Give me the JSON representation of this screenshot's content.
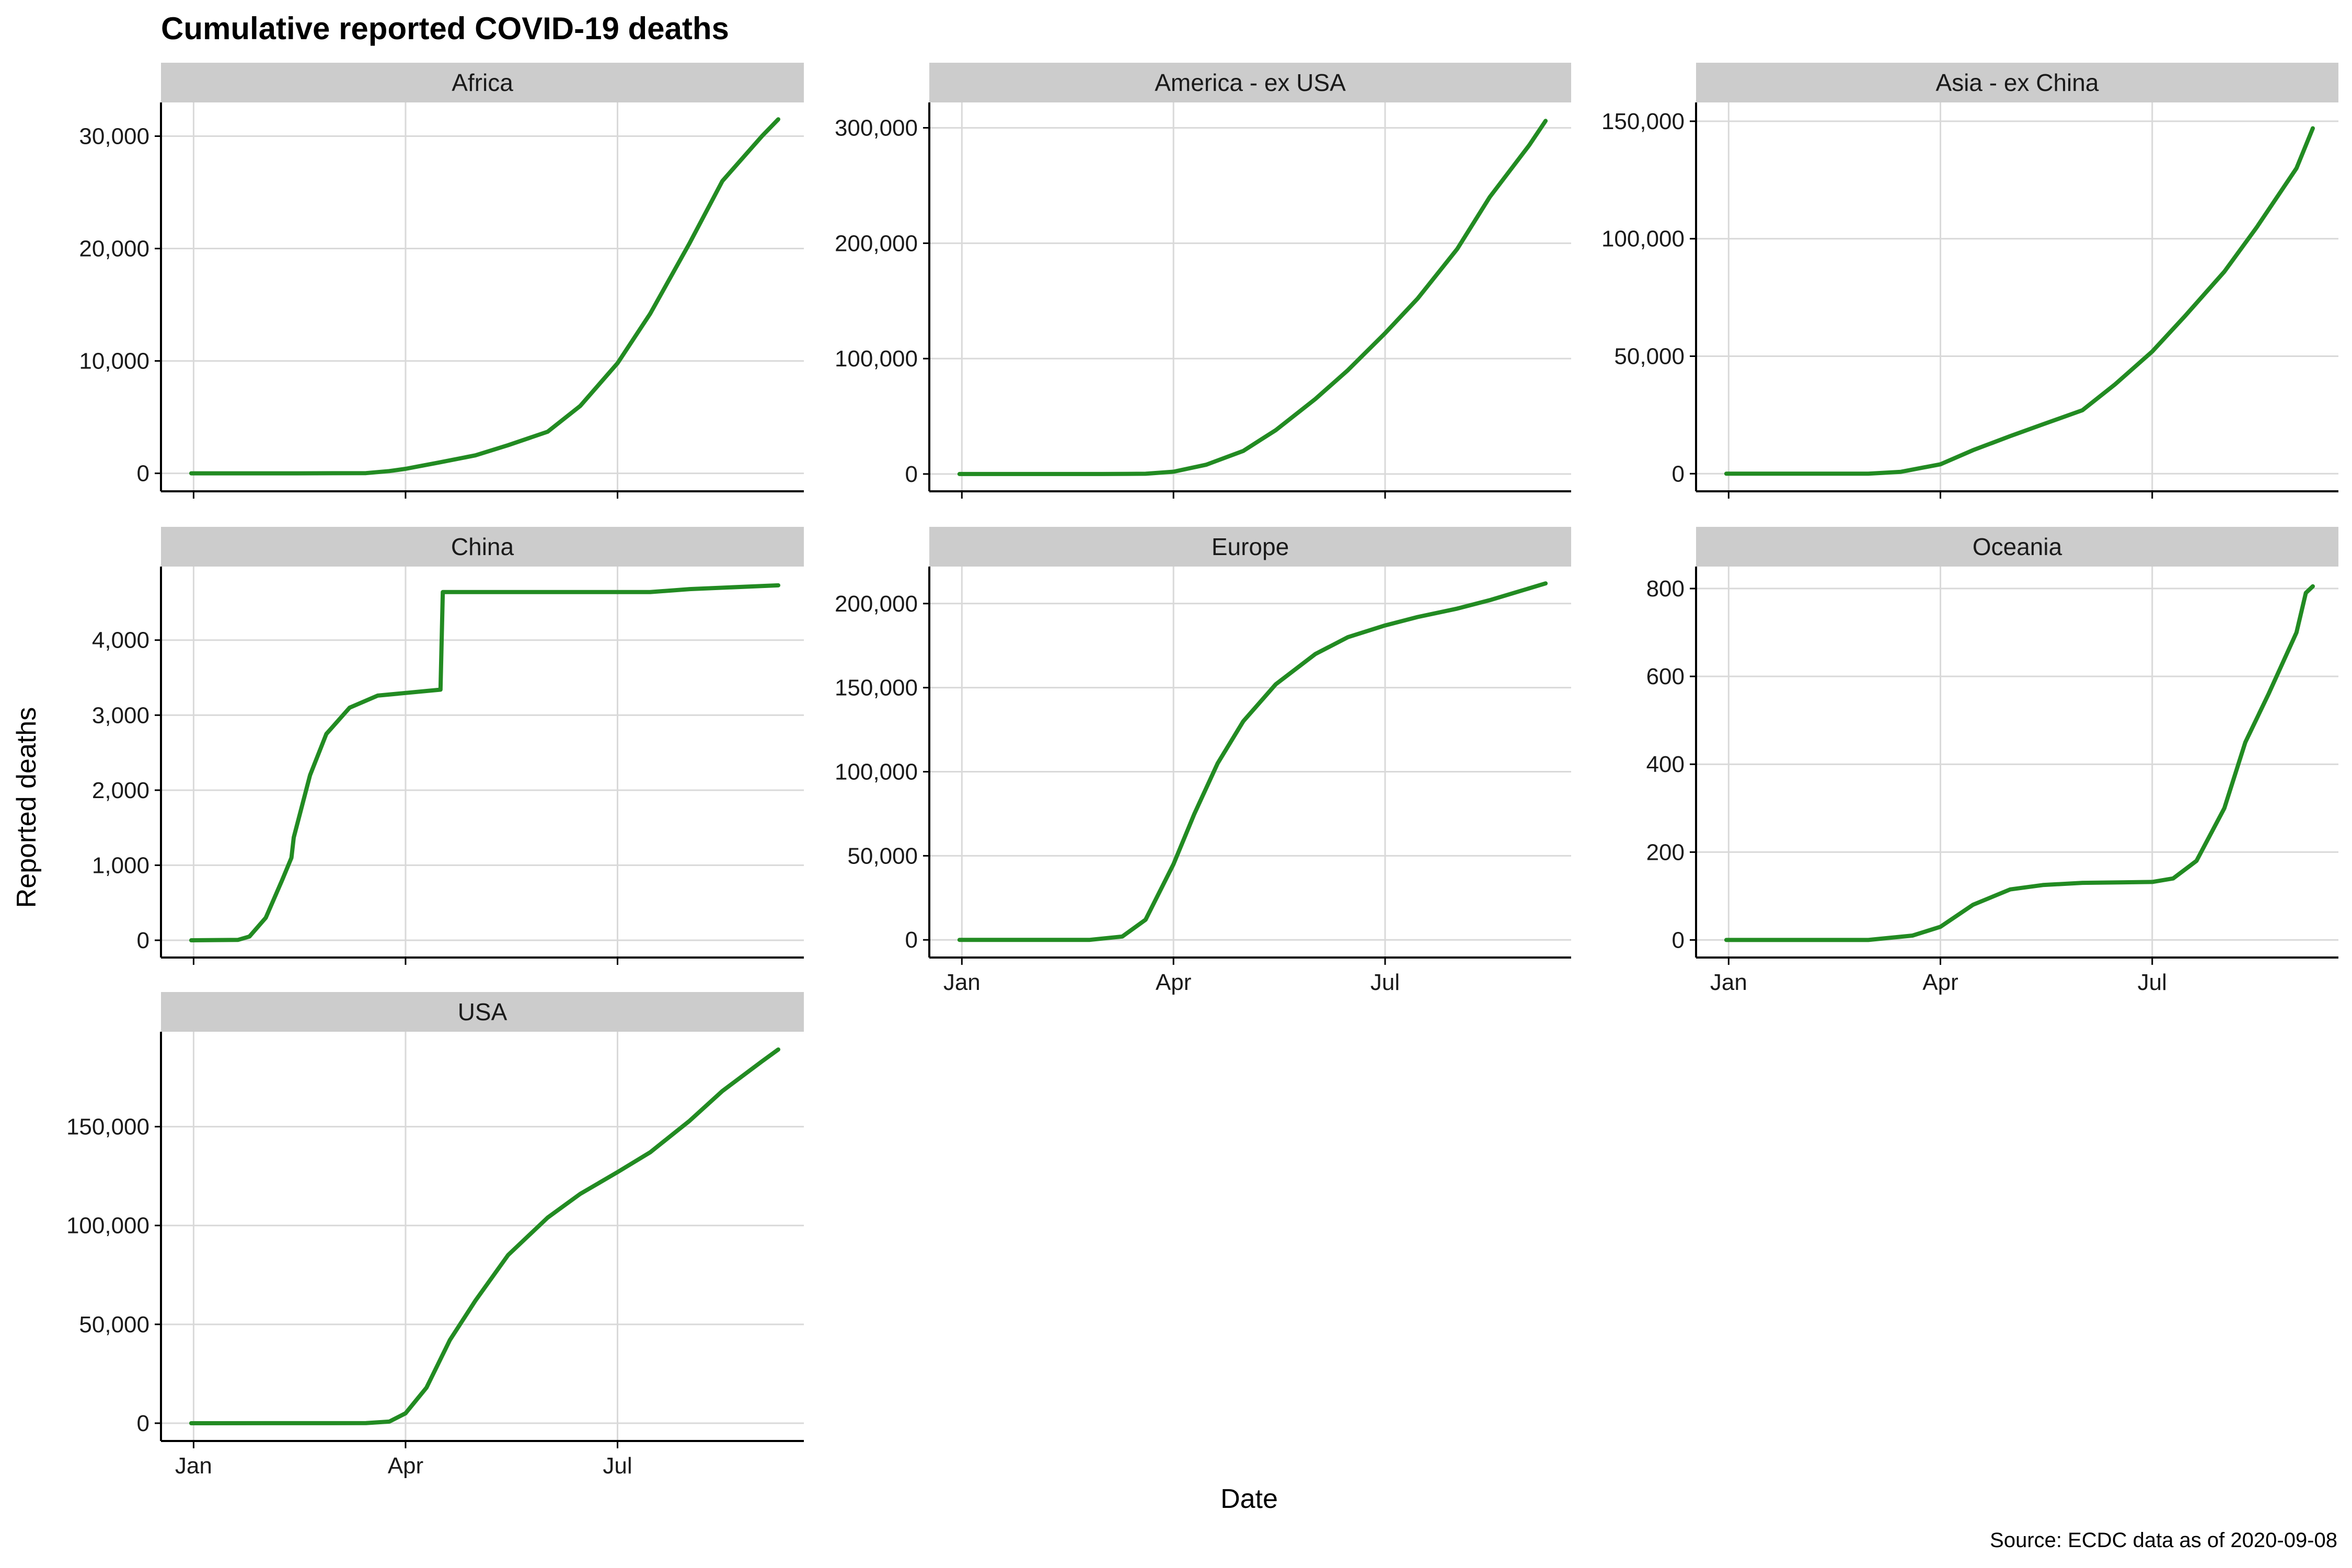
{
  "title": "Cumulative reported COVID-19 deaths",
  "xlabel": "Date",
  "ylabel": "Reported deaths",
  "caption": "Source: ECDC data as of 2020-09-08",
  "colors": {
    "line": "#228B22",
    "strip": "#cccccc",
    "grid": "#d9d9d9",
    "axis": "#000000"
  },
  "chart_data": [
    {
      "type": "line",
      "panel": "Africa",
      "x_ticks": [
        {
          "date": "2020-01-01",
          "label": "Jan"
        },
        {
          "date": "2020-04-01",
          "label": "Apr"
        },
        {
          "date": "2020-07-01",
          "label": "Jul"
        }
      ],
      "xlim": [
        "2019-12-18",
        "2020-09-19"
      ],
      "ylim": [
        -1600,
        33000
      ],
      "y_ticks": [
        0,
        10000,
        20000,
        30000
      ],
      "y_tick_labels": [
        "0",
        "10,000",
        "20,000",
        "30,000"
      ],
      "series": [
        {
          "x": [
            "2019-12-31",
            "2020-02-15",
            "2020-03-15",
            "2020-03-25",
            "2020-04-01",
            "2020-04-15",
            "2020-05-01",
            "2020-05-15",
            "2020-06-01",
            "2020-06-15",
            "2020-07-01",
            "2020-07-15",
            "2020-08-01",
            "2020-08-15",
            "2020-09-01",
            "2020-09-08"
          ],
          "y": [
            0,
            0,
            20,
            200,
            400,
            950,
            1600,
            2500,
            3700,
            6000,
            9800,
            14200,
            20500,
            26000,
            30000,
            31500
          ]
        }
      ]
    },
    {
      "type": "line",
      "panel": "America - ex USA",
      "x_ticks": [
        {
          "date": "2020-01-01",
          "label": "Jan"
        },
        {
          "date": "2020-04-01",
          "label": "Apr"
        },
        {
          "date": "2020-07-01",
          "label": "Jul"
        }
      ],
      "xlim": [
        "2019-12-18",
        "2020-09-19"
      ],
      "ylim": [
        -15000,
        322000
      ],
      "y_ticks": [
        0,
        100000,
        200000,
        300000
      ],
      "y_tick_labels": [
        "0",
        "100,000",
        "200,000",
        "300,000"
      ],
      "series": [
        {
          "x": [
            "2019-12-31",
            "2020-03-01",
            "2020-03-20",
            "2020-04-01",
            "2020-04-15",
            "2020-05-01",
            "2020-05-15",
            "2020-06-01",
            "2020-06-15",
            "2020-07-01",
            "2020-07-15",
            "2020-08-01",
            "2020-08-15",
            "2020-09-01",
            "2020-09-08"
          ],
          "y": [
            0,
            0,
            200,
            2000,
            8000,
            20000,
            38000,
            65000,
            90000,
            122000,
            152000,
            195000,
            240000,
            285000,
            306000
          ]
        }
      ]
    },
    {
      "type": "line",
      "panel": "Asia - ex China",
      "x_ticks": [
        {
          "date": "2020-01-01",
          "label": "Jan"
        },
        {
          "date": "2020-04-01",
          "label": "Apr"
        },
        {
          "date": "2020-07-01",
          "label": "Jul"
        }
      ],
      "xlim": [
        "2019-12-18",
        "2020-09-19"
      ],
      "ylim": [
        -7500,
        158000
      ],
      "y_ticks": [
        0,
        50000,
        100000,
        150000
      ],
      "y_tick_labels": [
        "0",
        "50,000",
        "100,000",
        "150,000"
      ],
      "series": [
        {
          "x": [
            "2019-12-31",
            "2020-03-01",
            "2020-03-15",
            "2020-04-01",
            "2020-04-15",
            "2020-05-01",
            "2020-05-15",
            "2020-06-01",
            "2020-06-15",
            "2020-07-01",
            "2020-07-15",
            "2020-08-01",
            "2020-08-15",
            "2020-09-01",
            "2020-09-08"
          ],
          "y": [
            0,
            0,
            800,
            4000,
            10000,
            16000,
            21000,
            27000,
            38000,
            52000,
            67000,
            86000,
            105000,
            130000,
            147000
          ]
        }
      ]
    },
    {
      "type": "line",
      "panel": "China",
      "x_ticks": [
        {
          "date": "2020-01-01",
          "label": "Jan"
        },
        {
          "date": "2020-04-01",
          "label": "Apr"
        },
        {
          "date": "2020-07-01",
          "label": "Jul"
        }
      ],
      "xlim": [
        "2019-12-18",
        "2020-09-19"
      ],
      "ylim": [
        -230,
        4980
      ],
      "y_ticks": [
        0,
        1000,
        2000,
        3000,
        4000
      ],
      "y_tick_labels": [
        "0",
        "1,000",
        "2,000",
        "3,000",
        "4,000"
      ],
      "series": [
        {
          "x": [
            "2019-12-31",
            "2020-01-20",
            "2020-01-25",
            "2020-02-01",
            "2020-02-08",
            "2020-02-12",
            "2020-02-13",
            "2020-02-20",
            "2020-02-27",
            "2020-03-08",
            "2020-03-20",
            "2020-04-16",
            "2020-04-17",
            "2020-05-15",
            "2020-07-15",
            "2020-08-01",
            "2020-09-08"
          ],
          "y": [
            0,
            5,
            50,
            300,
            800,
            1100,
            1370,
            2200,
            2750,
            3100,
            3260,
            3340,
            4640,
            4640,
            4640,
            4680,
            4730
          ]
        }
      ]
    },
    {
      "type": "line",
      "panel": "Europe",
      "x_ticks": [
        {
          "date": "2020-01-01",
          "label": "Jan"
        },
        {
          "date": "2020-04-01",
          "label": "Apr"
        },
        {
          "date": "2020-07-01",
          "label": "Jul"
        }
      ],
      "xlim": [
        "2019-12-18",
        "2020-09-19"
      ],
      "ylim": [
        -10500,
        222000
      ],
      "y_ticks": [
        0,
        50000,
        100000,
        150000,
        200000
      ],
      "y_tick_labels": [
        "0",
        "50,000",
        "100,000",
        "150,000",
        "200,000"
      ],
      "series": [
        {
          "x": [
            "2019-12-31",
            "2020-02-25",
            "2020-03-10",
            "2020-03-20",
            "2020-04-01",
            "2020-04-10",
            "2020-04-20",
            "2020-05-01",
            "2020-05-15",
            "2020-06-01",
            "2020-06-15",
            "2020-07-01",
            "2020-07-15",
            "2020-08-01",
            "2020-08-15",
            "2020-09-08"
          ],
          "y": [
            0,
            0,
            2000,
            12000,
            45000,
            75000,
            105000,
            130000,
            152000,
            170000,
            180000,
            187000,
            192000,
            197000,
            202000,
            212000
          ]
        }
      ]
    },
    {
      "type": "line",
      "panel": "Oceania",
      "x_ticks": [
        {
          "date": "2020-01-01",
          "label": "Jan"
        },
        {
          "date": "2020-04-01",
          "label": "Apr"
        },
        {
          "date": "2020-07-01",
          "label": "Jul"
        }
      ],
      "xlim": [
        "2019-12-18",
        "2020-09-19"
      ],
      "ylim": [
        -40,
        850
      ],
      "y_ticks": [
        0,
        200,
        400,
        600,
        800
      ],
      "y_tick_labels": [
        "0",
        "200",
        "400",
        "600",
        "800"
      ],
      "series": [
        {
          "x": [
            "2019-12-31",
            "2020-03-01",
            "2020-03-20",
            "2020-04-01",
            "2020-04-15",
            "2020-05-01",
            "2020-05-15",
            "2020-06-01",
            "2020-07-01",
            "2020-07-10",
            "2020-07-20",
            "2020-08-01",
            "2020-08-10",
            "2020-08-20",
            "2020-09-01",
            "2020-09-05",
            "2020-09-08"
          ],
          "y": [
            0,
            0,
            10,
            30,
            80,
            115,
            125,
            130,
            132,
            140,
            180,
            300,
            450,
            560,
            700,
            790,
            805
          ]
        }
      ]
    },
    {
      "type": "line",
      "panel": "USA",
      "x_ticks": [
        {
          "date": "2020-01-01",
          "label": "Jan"
        },
        {
          "date": "2020-04-01",
          "label": "Apr"
        },
        {
          "date": "2020-07-01",
          "label": "Jul"
        }
      ],
      "xlim": [
        "2019-12-18",
        "2020-09-19"
      ],
      "ylim": [
        -9000,
        198000
      ],
      "y_ticks": [
        0,
        50000,
        100000,
        150000
      ],
      "y_tick_labels": [
        "0",
        "50,000",
        "100,000",
        "150,000"
      ],
      "series": [
        {
          "x": [
            "2019-12-31",
            "2020-03-15",
            "2020-03-25",
            "2020-04-01",
            "2020-04-10",
            "2020-04-20",
            "2020-05-01",
            "2020-05-15",
            "2020-06-01",
            "2020-06-15",
            "2020-07-01",
            "2020-07-15",
            "2020-08-01",
            "2020-08-15",
            "2020-09-01",
            "2020-09-08"
          ],
          "y": [
            0,
            50,
            800,
            5000,
            18000,
            42000,
            62000,
            85000,
            104000,
            116000,
            127000,
            137000,
            153000,
            168000,
            183000,
            189000
          ]
        }
      ]
    }
  ]
}
